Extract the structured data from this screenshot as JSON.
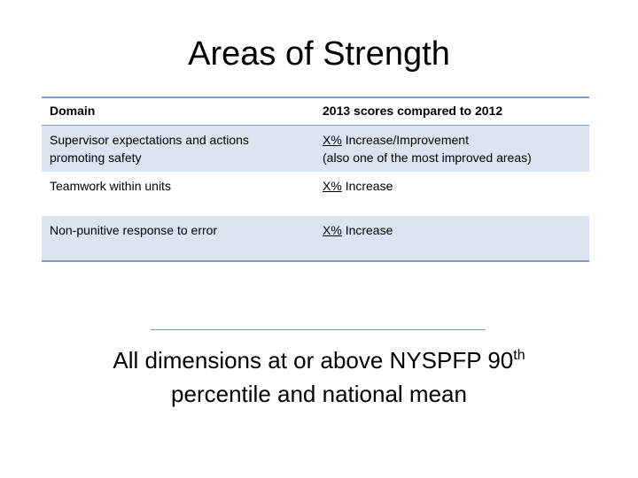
{
  "title": "Areas of Strength",
  "table": {
    "header": [
      "Domain",
      "2013 scores compared to 2012"
    ],
    "rows": [
      {
        "domain": "Supervisor expectations and actions promoting safety",
        "mark": "X%",
        "change": "Increase/Improvement",
        "note": "(also one of the most improved areas)"
      },
      {
        "domain": "Teamwork within units",
        "mark": "X%",
        "change": "Increase"
      },
      {
        "domain": "Non-punitive response to error",
        "mark": "X%",
        "change": "Increase"
      }
    ]
  },
  "footer": {
    "text": "All dimensions at or above NYSPFP 90",
    "superscript": "th",
    "line2": "percentile and national mean"
  }
}
